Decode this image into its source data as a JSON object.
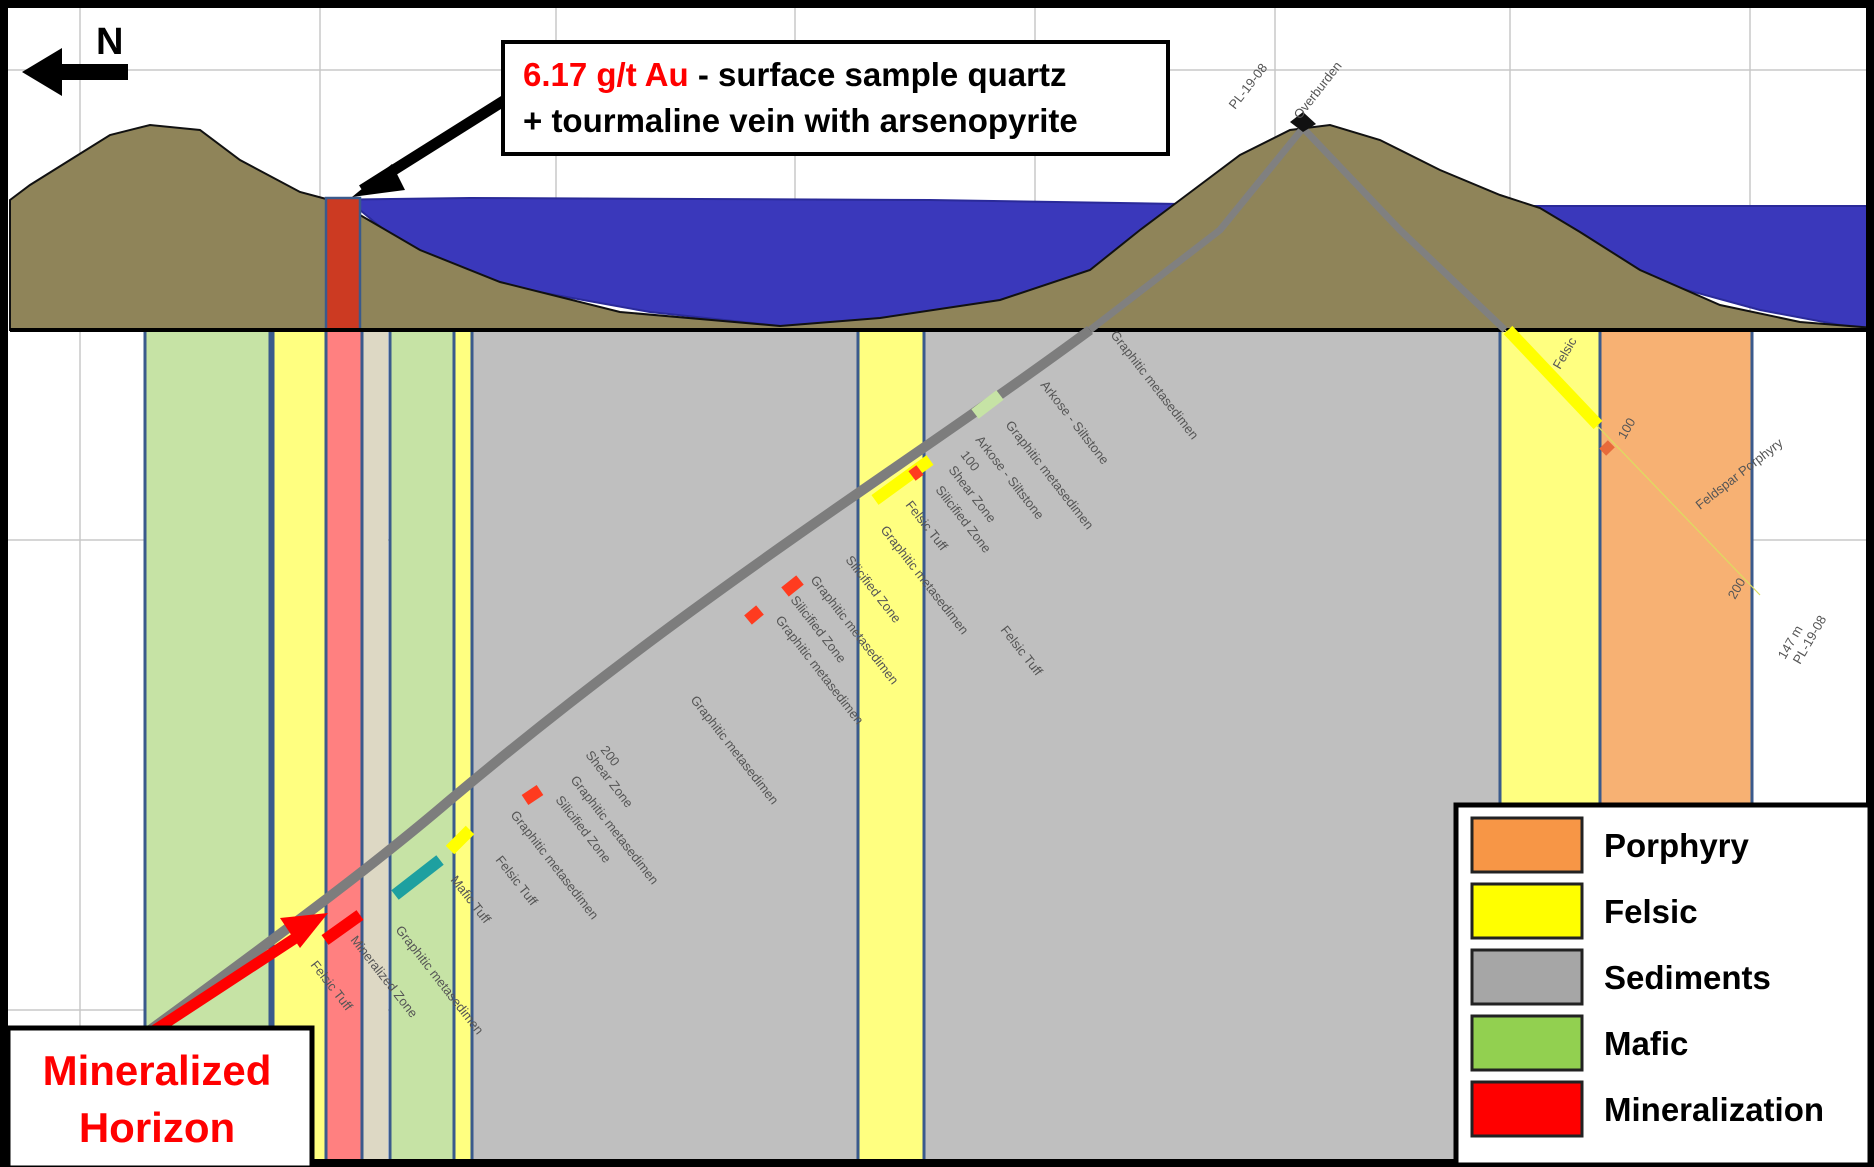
{
  "north_label": "N",
  "top_callout": {
    "value": "6.17 g/t Au",
    "line1_rest": " - surface sample quartz",
    "line2": "+ tourmaline vein with arsenopyrite",
    "value_color": "#ff0000"
  },
  "bottom_callout": {
    "line1": "Mineralized",
    "line2": "Horizon",
    "color": "#ff0000"
  },
  "legend": {
    "items": [
      {
        "label": "Porphyry",
        "color": "#f79646"
      },
      {
        "label": "Felsic",
        "color": "#ffff00"
      },
      {
        "label": "Sediments",
        "color": "#a6a6a6"
      },
      {
        "label": "Mafic",
        "color": "#92d050"
      },
      {
        "label": "Mineralization",
        "color": "#ff0000"
      }
    ]
  },
  "drillhole": {
    "name": "PL-19-08",
    "top_labels": [
      "PL-19-08",
      "Overburden"
    ],
    "end_depth": "147 m",
    "end_name": "PL-19-08",
    "depth_ticks": [
      "100",
      "200"
    ],
    "unit_labels": [
      "Graphitic metasedimen",
      "Arkose - Siltstone",
      "Graphitic metasedimen",
      "Arkose - Siltstone",
      "Shear Zone",
      "Silicified Zone",
      "Felsic Tuff",
      "Graphitic metasedimen",
      "Silicified Zone",
      "Graphitic metasedimen",
      "Silicified Zone",
      "Graphitic metasedimen",
      "Felsic Tuff",
      "Graphitic metasedimen",
      "Shear Zone",
      "Graphitic metasedimen",
      "Silicified Zone",
      "Graphitic metasedimen",
      "Felsic Tuff",
      "Mafic Tuff",
      "Graphitic metasedimen",
      "Mineralized Zone",
      "Felsic Tuff"
    ],
    "right_hole_labels": [
      "Felsic",
      "100",
      "Feldspar Porphyry",
      "200"
    ]
  },
  "colors": {
    "overburden": "#8f8459",
    "water": "#3a38bb",
    "porphyry_band": "#f7b173",
    "felsic_band": "#ffff80",
    "sediment_band": "#bfbfbf",
    "mafic_band": "#c6e3a5",
    "mineralization_band": "#ff8080",
    "band_edge": "#3a5a8c"
  }
}
